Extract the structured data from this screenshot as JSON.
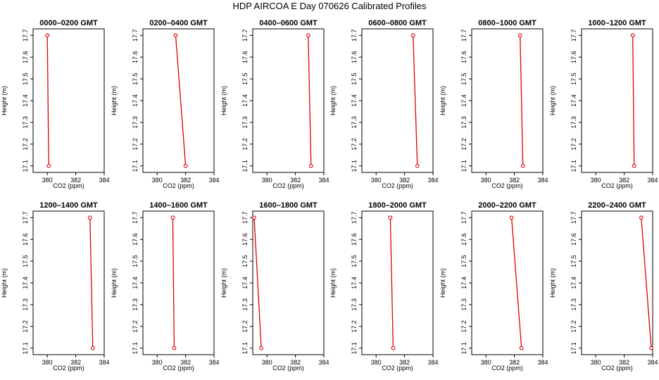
{
  "figure": {
    "title": "HDP  AIRCOA E  Day 070626  Calibrated Profiles"
  },
  "colors": {
    "line": "#e00000",
    "axis": "#000000",
    "background": "#ffffff"
  },
  "chart_data": [
    {
      "type": "line",
      "title": "0000–0200 GMT",
      "xlabel": "CO2 (ppm)",
      "ylabel": "Height (m)",
      "xlim": [
        379,
        384
      ],
      "ylim": [
        17.07,
        17.73
      ],
      "x_ticks": [
        "380",
        "382",
        "384"
      ],
      "y_ticks": [
        "17.1",
        "17.2",
        "17.3",
        "17.4",
        "17.5",
        "17.6",
        "17.7"
      ],
      "grid": false,
      "legend": "none",
      "points": [
        {
          "x": 380.0,
          "y": 17.7
        },
        {
          "x": 380.1,
          "y": 17.1
        }
      ]
    },
    {
      "type": "line",
      "title": "0200–0400 GMT",
      "xlabel": "CO2 (ppm)",
      "ylabel": "Height (m)",
      "xlim": [
        379,
        384
      ],
      "ylim": [
        17.07,
        17.73
      ],
      "x_ticks": [
        "380",
        "382",
        "384"
      ],
      "y_ticks": [
        "17.1",
        "17.2",
        "17.3",
        "17.4",
        "17.5",
        "17.6",
        "17.7"
      ],
      "grid": false,
      "legend": "none",
      "points": [
        {
          "x": 381.3,
          "y": 17.7
        },
        {
          "x": 382.0,
          "y": 17.1
        }
      ]
    },
    {
      "type": "line",
      "title": "0400–0600 GMT",
      "xlabel": "CO2 (ppm)",
      "ylabel": "Height (m)",
      "xlim": [
        379,
        384
      ],
      "ylim": [
        17.07,
        17.73
      ],
      "x_ticks": [
        "380",
        "382",
        "384"
      ],
      "y_ticks": [
        "17.1",
        "17.2",
        "17.3",
        "17.4",
        "17.5",
        "17.6",
        "17.7"
      ],
      "grid": false,
      "legend": "none",
      "points": [
        {
          "x": 382.9,
          "y": 17.7
        },
        {
          "x": 383.1,
          "y": 17.1
        }
      ]
    },
    {
      "type": "line",
      "title": "0600–0800 GMT",
      "xlabel": "CO2 (ppm)",
      "ylabel": "Height (m)",
      "xlim": [
        379,
        384
      ],
      "ylim": [
        17.07,
        17.73
      ],
      "x_ticks": [
        "380",
        "382",
        "384"
      ],
      "y_ticks": [
        "17.1",
        "17.2",
        "17.3",
        "17.4",
        "17.5",
        "17.6",
        "17.7"
      ],
      "grid": false,
      "legend": "none",
      "points": [
        {
          "x": 382.6,
          "y": 17.7
        },
        {
          "x": 382.9,
          "y": 17.1
        }
      ]
    },
    {
      "type": "line",
      "title": "0800–1000 GMT",
      "xlabel": "CO2 (ppm)",
      "ylabel": "Height (m)",
      "xlim": [
        379,
        384
      ],
      "ylim": [
        17.07,
        17.73
      ],
      "x_ticks": [
        "380",
        "382",
        "384"
      ],
      "y_ticks": [
        "17.1",
        "17.2",
        "17.3",
        "17.4",
        "17.5",
        "17.6",
        "17.7"
      ],
      "grid": false,
      "legend": "none",
      "points": [
        {
          "x": 382.4,
          "y": 17.7
        },
        {
          "x": 382.6,
          "y": 17.1
        }
      ]
    },
    {
      "type": "line",
      "title": "1000–1200 GMT",
      "xlabel": "CO2 (ppm)",
      "ylabel": "Height (m)",
      "xlim": [
        379,
        384
      ],
      "ylim": [
        17.07,
        17.73
      ],
      "x_ticks": [
        "380",
        "382",
        "384"
      ],
      "y_ticks": [
        "17.1",
        "17.2",
        "17.3",
        "17.4",
        "17.5",
        "17.6",
        "17.7"
      ],
      "grid": false,
      "legend": "none",
      "points": [
        {
          "x": 382.6,
          "y": 17.7
        },
        {
          "x": 382.7,
          "y": 17.1
        }
      ]
    },
    {
      "type": "line",
      "title": "1200–1400 GMT",
      "xlabel": "CO2 (ppm)",
      "ylabel": "Height (m)",
      "xlim": [
        379,
        384
      ],
      "ylim": [
        17.07,
        17.73
      ],
      "x_ticks": [
        "380",
        "382",
        "384"
      ],
      "y_ticks": [
        "17.1",
        "17.2",
        "17.3",
        "17.4",
        "17.5",
        "17.6",
        "17.7"
      ],
      "grid": false,
      "legend": "none",
      "points": [
        {
          "x": 383.0,
          "y": 17.7
        },
        {
          "x": 383.2,
          "y": 17.1
        }
      ]
    },
    {
      "type": "line",
      "title": "1400–1600 GMT",
      "xlabel": "CO2 (ppm)",
      "ylabel": "Height (m)",
      "xlim": [
        379,
        384
      ],
      "ylim": [
        17.07,
        17.73
      ],
      "x_ticks": [
        "380",
        "382",
        "384"
      ],
      "y_ticks": [
        "17.1",
        "17.2",
        "17.3",
        "17.4",
        "17.5",
        "17.6",
        "17.7"
      ],
      "grid": false,
      "legend": "none",
      "points": [
        {
          "x": 381.1,
          "y": 17.7
        },
        {
          "x": 381.2,
          "y": 17.1
        }
      ]
    },
    {
      "type": "line",
      "title": "1600–1800 GMT",
      "xlabel": "CO2 (ppm)",
      "ylabel": "Height (m)",
      "xlim": [
        379,
        384
      ],
      "ylim": [
        17.07,
        17.73
      ],
      "x_ticks": [
        "380",
        "382",
        "384"
      ],
      "y_ticks": [
        "17.1",
        "17.2",
        "17.3",
        "17.4",
        "17.5",
        "17.6",
        "17.7"
      ],
      "grid": false,
      "legend": "none",
      "points": [
        {
          "x": 379.1,
          "y": 17.7
        },
        {
          "x": 379.6,
          "y": 17.1
        }
      ]
    },
    {
      "type": "line",
      "title": "1800–2000 GMT",
      "xlabel": "CO2 (ppm)",
      "ylabel": "Height (m)",
      "xlim": [
        379,
        384
      ],
      "ylim": [
        17.07,
        17.73
      ],
      "x_ticks": [
        "380",
        "382",
        "384"
      ],
      "y_ticks": [
        "17.1",
        "17.2",
        "17.3",
        "17.4",
        "17.5",
        "17.6",
        "17.7"
      ],
      "grid": false,
      "legend": "none",
      "points": [
        {
          "x": 381.0,
          "y": 17.7
        },
        {
          "x": 381.2,
          "y": 17.1
        }
      ]
    },
    {
      "type": "line",
      "title": "2000–2200 GMT",
      "xlabel": "CO2 (ppm)",
      "ylabel": "Height (m)",
      "xlim": [
        379,
        384
      ],
      "ylim": [
        17.07,
        17.73
      ],
      "x_ticks": [
        "380",
        "382",
        "384"
      ],
      "y_ticks": [
        "17.1",
        "17.2",
        "17.3",
        "17.4",
        "17.5",
        "17.6",
        "17.7"
      ],
      "grid": false,
      "legend": "none",
      "points": [
        {
          "x": 381.8,
          "y": 17.7
        },
        {
          "x": 382.5,
          "y": 17.1
        }
      ]
    },
    {
      "type": "line",
      "title": "2200–2400 GMT",
      "xlabel": "CO2 (ppm)",
      "ylabel": "Height (m)",
      "xlim": [
        379,
        384
      ],
      "ylim": [
        17.07,
        17.73
      ],
      "x_ticks": [
        "380",
        "382",
        "384"
      ],
      "y_ticks": [
        "17.1",
        "17.2",
        "17.3",
        "17.4",
        "17.5",
        "17.6",
        "17.7"
      ],
      "grid": false,
      "legend": "none",
      "points": [
        {
          "x": 383.2,
          "y": 17.7
        },
        {
          "x": 383.9,
          "y": 17.1
        }
      ]
    }
  ]
}
